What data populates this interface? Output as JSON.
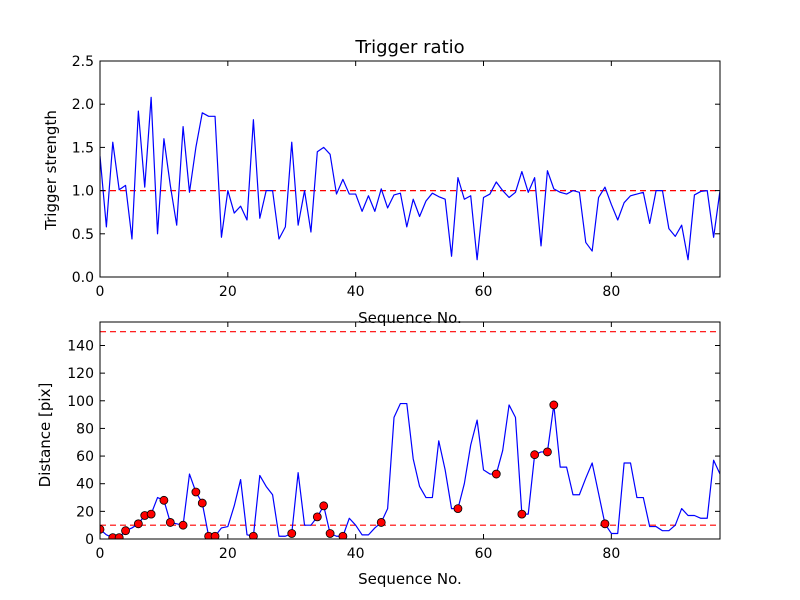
{
  "chart_data": [
    {
      "type": "line",
      "title": "Trigger ratio",
      "xlabel": "Sequence No.",
      "ylabel": "Trigger strength",
      "xlim": [
        0,
        97
      ],
      "ylim": [
        0,
        2.5
      ],
      "xticks": [
        "0",
        "20",
        "40",
        "60",
        "80"
      ],
      "xtick_values": [
        0,
        20,
        40,
        60,
        80
      ],
      "yticks": [
        "0.0",
        "0.5",
        "1.0",
        "1.5",
        "2.0",
        "2.5"
      ],
      "ytick_values": [
        0,
        0.5,
        1.0,
        1.5,
        2.0,
        2.5
      ],
      "hlines": [
        {
          "y": 1.0,
          "style": "dashed",
          "color": "#ff0000"
        }
      ],
      "series": [
        {
          "name": "trigger strength",
          "color": "#0000ff",
          "values": [
            1.4,
            0.58,
            1.56,
            1.01,
            1.06,
            0.44,
            1.92,
            1.04,
            2.08,
            0.5,
            1.6,
            1.06,
            0.6,
            1.74,
            0.98,
            1.5,
            1.9,
            1.86,
            1.86,
            0.46,
            1.0,
            0.74,
            0.82,
            0.66,
            1.82,
            0.68,
            1.0,
            1.0,
            0.44,
            0.58,
            1.56,
            0.6,
            1.0,
            0.52,
            1.45,
            1.5,
            1.42,
            0.96,
            1.13,
            0.96,
            0.96,
            0.76,
            0.94,
            0.76,
            1.02,
            0.8,
            0.95,
            0.97,
            0.58,
            0.9,
            0.7,
            0.88,
            0.97,
            0.93,
            0.9,
            0.24,
            1.15,
            0.9,
            0.94,
            0.2,
            0.92,
            0.96,
            1.1,
            1.0,
            0.92,
            0.98,
            1.22,
            0.98,
            1.15,
            0.36,
            1.23,
            1.02,
            0.98,
            0.96,
            1.0,
            0.98,
            0.4,
            0.3,
            0.92,
            1.04,
            0.84,
            0.66,
            0.86,
            0.94,
            0.96,
            0.98,
            0.62,
            1.0,
            1.0,
            0.56,
            0.47,
            0.6,
            0.2,
            0.95,
            0.99,
            1.0,
            0.46,
            1.0
          ]
        }
      ]
    },
    {
      "type": "line",
      "title": "",
      "xlabel": "Sequence No.",
      "ylabel": "Distance [pix]",
      "xlim": [
        0,
        97
      ],
      "ylim": [
        0,
        157
      ],
      "xticks": [
        "0",
        "20",
        "40",
        "60",
        "80"
      ],
      "xtick_values": [
        0,
        20,
        40,
        60,
        80
      ],
      "yticks": [
        "0",
        "20",
        "40",
        "60",
        "80",
        "100",
        "120",
        "140"
      ],
      "ytick_values": [
        0,
        20,
        40,
        60,
        80,
        100,
        120,
        140
      ],
      "hlines": [
        {
          "y": 150,
          "style": "dashed",
          "color": "#ff0000"
        },
        {
          "y": 10,
          "style": "dashed",
          "color": "#ff0000"
        }
      ],
      "series": [
        {
          "name": "distance",
          "color": "#0000ff",
          "values": [
            7,
            3,
            1,
            1,
            6,
            8,
            11,
            17,
            18,
            30,
            28,
            12,
            11,
            10,
            47,
            34,
            26,
            2,
            2,
            8,
            9,
            24,
            43,
            3,
            2,
            46,
            38,
            32,
            2,
            2,
            4,
            48,
            10,
            10,
            16,
            24,
            4,
            2,
            2,
            15,
            10,
            3,
            3,
            8,
            12,
            22,
            88,
            98,
            98,
            58,
            38,
            30,
            30,
            71,
            50,
            22,
            22,
            40,
            68,
            86,
            50,
            47,
            47,
            64,
            97,
            88,
            18,
            18,
            61,
            63,
            63,
            97,
            52,
            52,
            32,
            32,
            44,
            55,
            33,
            11,
            4,
            4,
            55,
            55,
            30,
            30,
            9,
            9,
            6,
            6,
            10,
            22,
            17,
            17,
            15,
            15,
            57,
            47
          ]
        },
        {
          "name": "highlighted",
          "type": "scatter",
          "color": "#ff0000",
          "points": [
            [
              0,
              7
            ],
            [
              2,
              1
            ],
            [
              3,
              1
            ],
            [
              4,
              6
            ],
            [
              6,
              11
            ],
            [
              7,
              17
            ],
            [
              8,
              18
            ],
            [
              10,
              28
            ],
            [
              11,
              12
            ],
            [
              13,
              10
            ],
            [
              15,
              34
            ],
            [
              16,
              26
            ],
            [
              17,
              2
            ],
            [
              18,
              2
            ],
            [
              24,
              2
            ],
            [
              30,
              4
            ],
            [
              34,
              16
            ],
            [
              35,
              24
            ],
            [
              36,
              4
            ],
            [
              38,
              2
            ],
            [
              44,
              12
            ],
            [
              56,
              22
            ],
            [
              62,
              47
            ],
            [
              66,
              18
            ],
            [
              68,
              61
            ],
            [
              70,
              63
            ],
            [
              71,
              97
            ],
            [
              79,
              11
            ]
          ]
        }
      ]
    }
  ]
}
